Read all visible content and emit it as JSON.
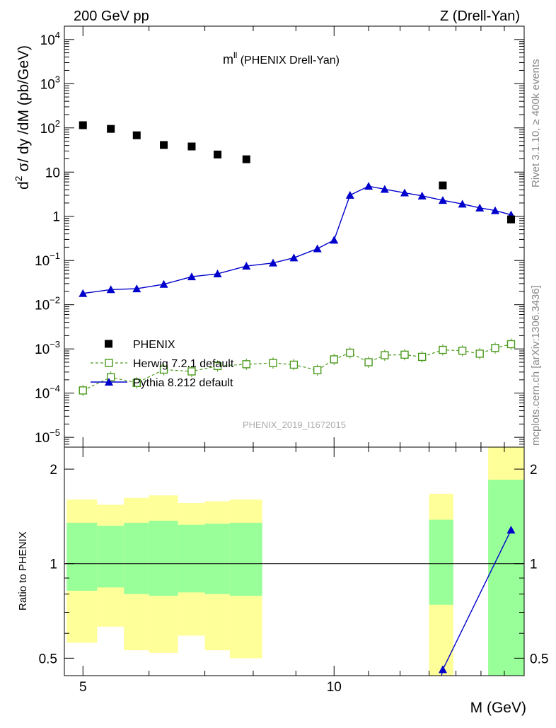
{
  "header": {
    "left": "200 GeV pp",
    "right": "Z (Drell-Yan)"
  },
  "side_labels": {
    "rivet": "Rivet 3.1.10, ≥ 400k events",
    "mcplots": "mcplots.cern.ch [arXiv:1306.3436]"
  },
  "colors": {
    "data": "#000000",
    "herwig": "#4a9a1c",
    "pythia": "#0000cc",
    "band_outer": "#ffff99",
    "band_inner": "#99ff99"
  },
  "chart_data": [
    {
      "type": "scatter",
      "title_main": "m",
      "title_sup": "ll",
      "title_rest": " (PHENIX Drell-Yan)",
      "ylabel": "d² σ/ dy /dM (pb/GeV)",
      "yscale": "log",
      "ylim": [
        6e-06,
        20000
      ],
      "xscale": "log",
      "xlim": [
        4.75,
        16.9
      ],
      "yticks": [
        {
          "v": 1e-05,
          "b": "10",
          "e": "−5"
        },
        {
          "v": 0.0001,
          "b": "10",
          "e": "−4"
        },
        {
          "v": 0.001,
          "b": "10",
          "e": "−3"
        },
        {
          "v": 0.01,
          "b": "10",
          "e": "−2"
        },
        {
          "v": 0.1,
          "b": "10",
          "e": "−1"
        },
        {
          "v": 1,
          "b": "1",
          "e": ""
        },
        {
          "v": 10,
          "b": "10",
          "e": ""
        },
        {
          "v": 100,
          "b": "10",
          "e": "2"
        },
        {
          "v": 1000,
          "b": "10",
          "e": "3"
        },
        {
          "v": 10000,
          "b": "10",
          "e": "4"
        }
      ],
      "watermark": "PHENIX_2019_I1672015",
      "legend": [
        {
          "key": "phenix",
          "label": "PHENIX"
        },
        {
          "key": "herwig",
          "label": "Herwig 7.2.1 default"
        },
        {
          "key": "pythia",
          "label": "Pythia 8.212 default"
        }
      ],
      "series": {
        "phenix": {
          "name": "PHENIX",
          "x": [
            5.0,
            5.4,
            5.8,
            6.25,
            6.75,
            7.25,
            7.85,
            13.5,
            16.3
          ],
          "y": [
            115,
            95,
            68,
            41,
            38,
            25,
            19.5,
            5.0,
            0.85
          ]
        },
        "herwig": {
          "name": "Herwig 7.2.1 default",
          "x": [
            5.0,
            5.4,
            5.8,
            6.25,
            6.75,
            7.25,
            7.85,
            8.45,
            8.95,
            9.55,
            10.0,
            10.45,
            11.0,
            11.5,
            12.15,
            12.75,
            13.5,
            14.25,
            14.95,
            15.6,
            16.3
          ],
          "y": [
            0.000115,
            0.00023,
            0.00017,
            0.00034,
            0.00031,
            0.00041,
            0.00045,
            0.00048,
            0.00044,
            0.00033,
            0.00058,
            0.00082,
            0.0005,
            0.00072,
            0.00074,
            0.00066,
            0.00095,
            0.00091,
            0.00078,
            0.00105,
            0.00128
          ]
        },
        "pythia": {
          "name": "Pythia 8.212 default",
          "x": [
            5.0,
            5.4,
            5.8,
            6.25,
            6.75,
            7.25,
            7.85,
            8.45,
            8.95,
            9.55,
            10.0,
            10.45,
            11.0,
            11.5,
            12.15,
            12.75,
            13.5,
            14.25,
            14.95,
            15.6,
            16.3
          ],
          "y": [
            0.018,
            0.022,
            0.023,
            0.029,
            0.043,
            0.05,
            0.075,
            0.088,
            0.115,
            0.185,
            0.29,
            3.0,
            4.8,
            4.1,
            3.4,
            2.9,
            2.3,
            1.9,
            1.55,
            1.35,
            1.08
          ]
        }
      }
    },
    {
      "type": "ratio",
      "ylabel": "Ratio to PHENIX",
      "xlabel": "M (GeV)",
      "yscale": "log",
      "ylim": [
        0.44,
        2.35
      ],
      "yticks": [
        {
          "v": 0.5,
          "t": "0.5"
        },
        {
          "v": 1,
          "t": "1"
        },
        {
          "v": 2,
          "t": "2"
        }
      ],
      "xticks": [
        {
          "v": 5,
          "t": "5"
        },
        {
          "v": 10,
          "t": "10"
        }
      ],
      "bands": [
        {
          "x0": 4.78,
          "x1": 5.2,
          "o_lo": 0.56,
          "o_hi": 1.6,
          "i_lo": 0.82,
          "i_hi": 1.35
        },
        {
          "x0": 5.2,
          "x1": 5.6,
          "o_lo": 0.63,
          "o_hi": 1.54,
          "i_lo": 0.84,
          "i_hi": 1.32
        },
        {
          "x0": 5.6,
          "x1": 6.0,
          "o_lo": 0.53,
          "o_hi": 1.62,
          "i_lo": 0.8,
          "i_hi": 1.35
        },
        {
          "x0": 6.0,
          "x1": 6.5,
          "o_lo": 0.52,
          "o_hi": 1.65,
          "i_lo": 0.79,
          "i_hi": 1.37
        },
        {
          "x0": 6.5,
          "x1": 7.0,
          "o_lo": 0.59,
          "o_hi": 1.56,
          "i_lo": 0.81,
          "i_hi": 1.33
        },
        {
          "x0": 7.0,
          "x1": 7.5,
          "o_lo": 0.53,
          "o_hi": 1.58,
          "i_lo": 0.8,
          "i_hi": 1.34
        },
        {
          "x0": 7.5,
          "x1": 8.2,
          "o_lo": 0.5,
          "o_hi": 1.6,
          "i_lo": 0.79,
          "i_hi": 1.35
        },
        {
          "x0": 13.0,
          "x1": 13.9,
          "o_lo": 0.4,
          "o_hi": 1.67,
          "i_lo": 0.74,
          "i_hi": 1.38
        },
        {
          "x0": 15.3,
          "x1": 17.0,
          "o_lo": 0.4,
          "o_hi": 2.6,
          "i_lo": 0.4,
          "i_hi": 1.85
        }
      ],
      "pythia_ratio": {
        "x": [
          13.35,
          13.5,
          16.3
        ],
        "y": [
          0.4,
          0.46,
          1.28
        ]
      }
    }
  ]
}
